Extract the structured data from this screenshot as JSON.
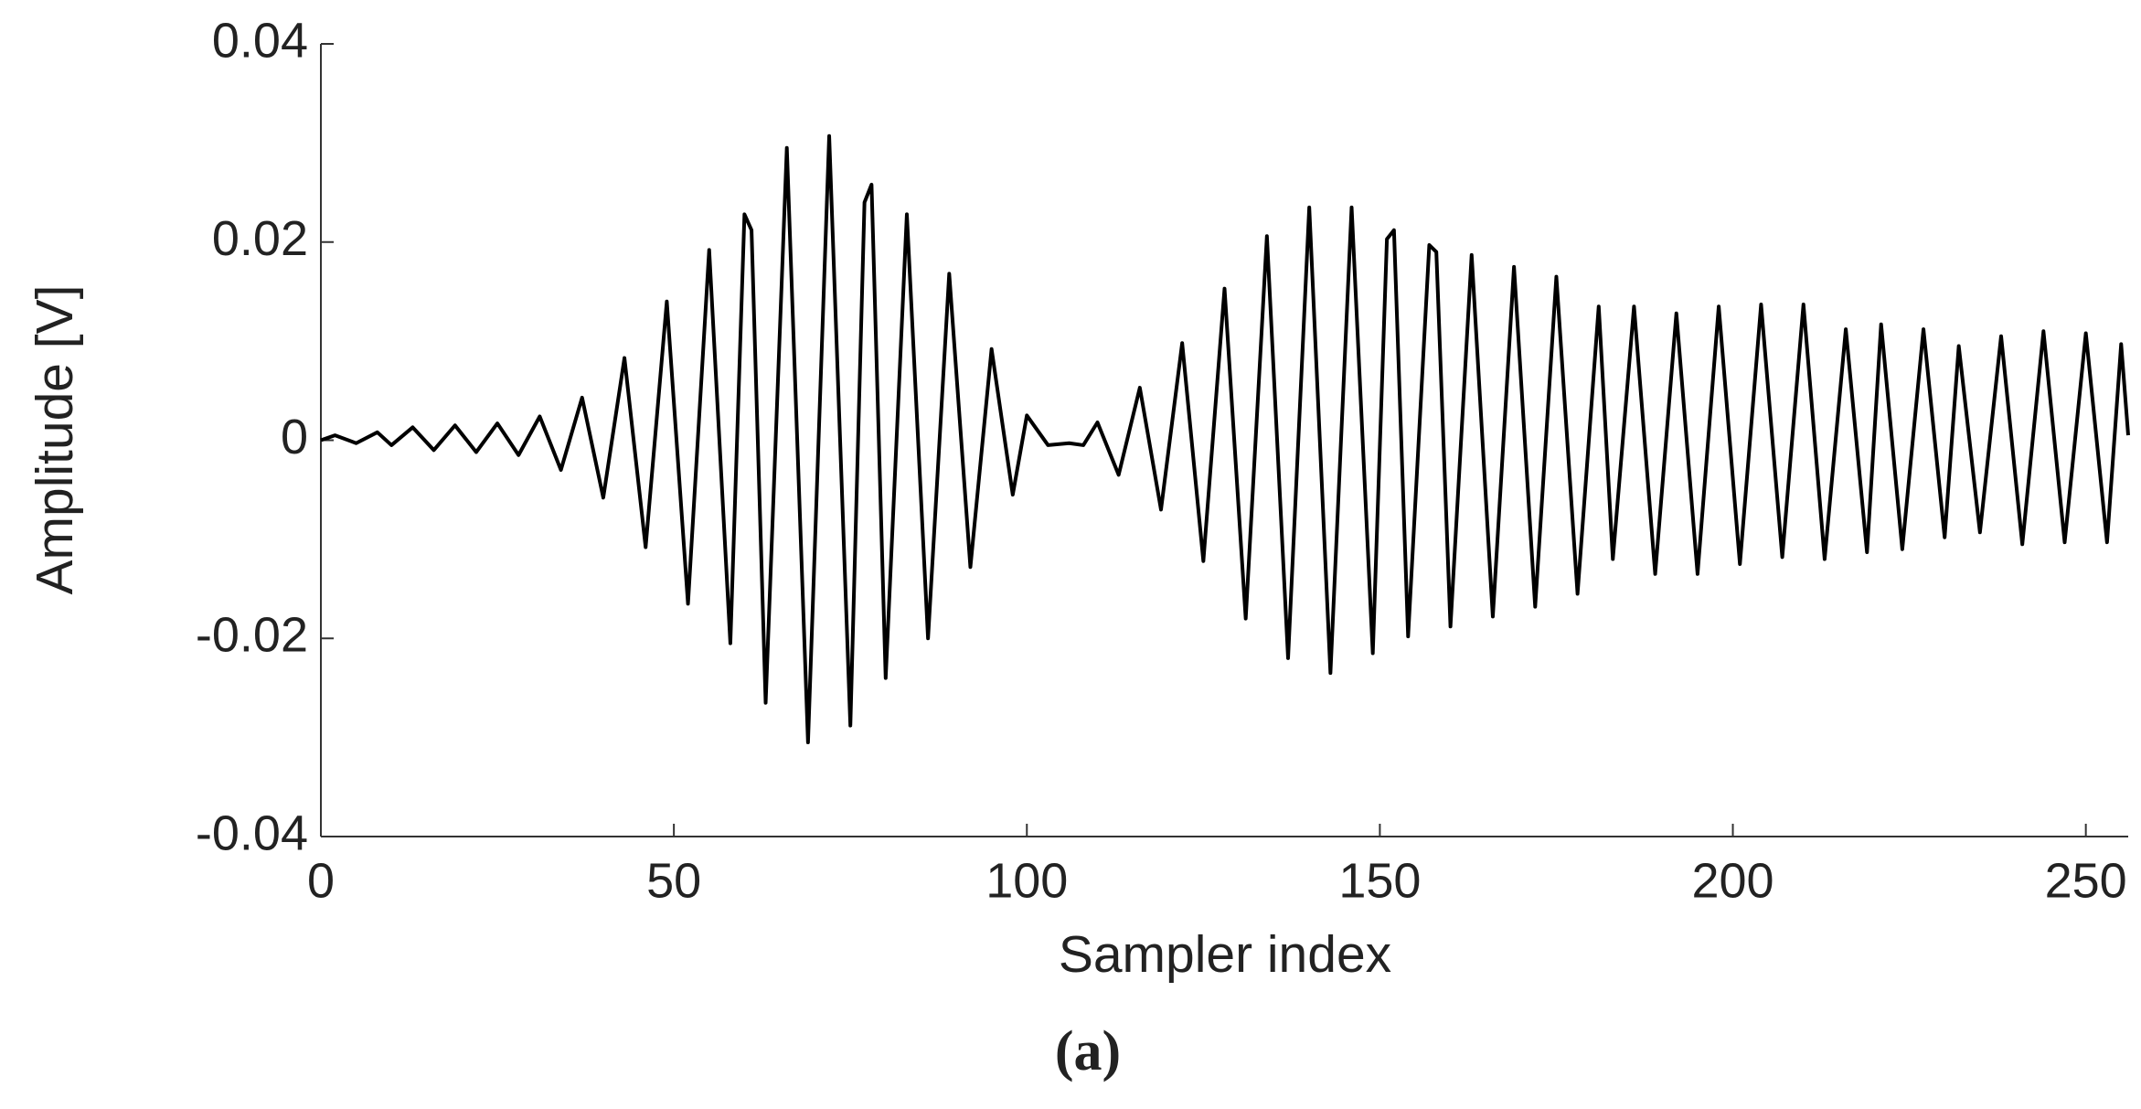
{
  "chart_data": {
    "type": "line",
    "xlabel": "Sampler index",
    "ylabel": "Amplitude [V]",
    "caption": "(a)",
    "xlim": [
      0,
      256
    ],
    "xticks": [
      0,
      50,
      100,
      150,
      200,
      250
    ],
    "ylim": [
      -0.04,
      0.04
    ],
    "yticks": [
      -0.04,
      -0.02,
      0,
      0.02,
      0.04
    ],
    "grid": false,
    "series": [
      {
        "color": "#000000",
        "x": [
          0,
          2,
          5,
          8,
          10,
          13,
          16,
          19,
          22,
          25,
          28,
          31,
          34,
          37,
          40,
          43,
          46,
          49,
          52,
          55,
          58,
          60,
          61,
          63,
          66,
          69,
          72,
          75,
          77,
          78,
          80,
          83,
          86,
          89,
          92,
          95,
          98,
          100,
          103,
          106,
          108,
          110,
          113,
          116,
          119,
          122,
          125,
          128,
          131,
          134,
          137,
          140,
          143,
          146,
          149,
          151,
          152,
          154,
          157,
          158,
          160,
          163,
          166,
          169,
          172,
          175,
          178,
          181,
          183,
          186,
          189,
          192,
          195,
          198,
          201,
          204,
          207,
          210,
          213,
          216,
          219,
          221,
          224,
          227,
          230,
          232,
          235,
          238,
          241,
          244,
          247,
          250,
          253,
          255,
          256
        ],
        "values": [
          0,
          0.0005,
          -0.0003,
          0.0008,
          -0.0005,
          0.0013,
          -0.001,
          0.0015,
          -0.0012,
          0.0017,
          -0.0015,
          0.0024,
          -0.003,
          0.0043,
          -0.0058,
          0.0083,
          -0.0108,
          0.014,
          -0.0165,
          0.0192,
          -0.0205,
          0.0228,
          0.0212,
          -0.0265,
          0.0295,
          -0.0305,
          0.0307,
          -0.0288,
          0.024,
          0.0258,
          -0.024,
          0.0228,
          -0.02,
          0.0168,
          -0.0128,
          0.0092,
          -0.0055,
          0.0025,
          -0.0005,
          -0.0003,
          -0.0005,
          0.0018,
          -0.0035,
          0.0053,
          -0.007,
          0.0098,
          -0.0122,
          0.0153,
          -0.018,
          0.0206,
          -0.022,
          0.0235,
          -0.0235,
          0.0235,
          -0.0215,
          0.0203,
          0.0212,
          -0.0198,
          0.0197,
          0.019,
          -0.0188,
          0.0187,
          -0.0178,
          0.0175,
          -0.0168,
          0.0165,
          -0.0155,
          0.0135,
          -0.012,
          0.0135,
          -0.0135,
          0.0128,
          -0.0135,
          0.0135,
          -0.0125,
          0.0137,
          -0.0118,
          0.0137,
          -0.012,
          0.0112,
          -0.0113,
          0.0117,
          -0.011,
          0.0112,
          -0.0098,
          0.0095,
          -0.0093,
          0.0105,
          -0.0105,
          0.011,
          -0.0103,
          0.0108,
          -0.0103,
          0.0097,
          0.0005
        ]
      }
    ]
  }
}
